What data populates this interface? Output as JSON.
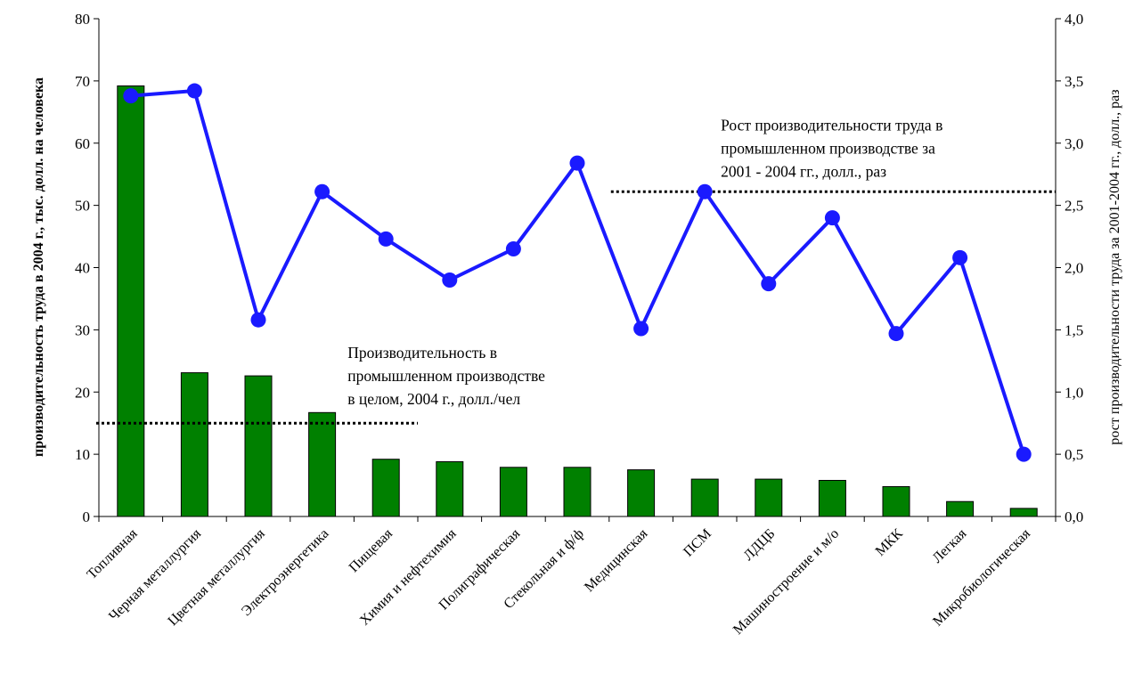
{
  "chart_data": {
    "type": "bar+line",
    "categories": [
      "Топливная",
      "Черная металлургия",
      "Цветная металлургия",
      "Электроэнергетика",
      "Пищевая",
      "Химия и нефтехимия",
      "Полиграфическая",
      "Стекольная и ф/ф",
      "Медицинская",
      "ПСМ",
      "ЛДЦБ",
      "Машиностроение и м/о",
      "МКК",
      "Легкая",
      "Микробиологическая"
    ],
    "series": [
      {
        "kind": "bar",
        "axis": "left",
        "color": "#008000",
        "values": [
          69.2,
          23.1,
          22.6,
          16.7,
          9.2,
          8.8,
          7.9,
          7.9,
          7.5,
          6.0,
          6.0,
          5.8,
          4.8,
          2.4,
          1.3
        ]
      },
      {
        "kind": "line",
        "axis": "right",
        "color": "#1a1aff",
        "values": [
          3.38,
          3.42,
          1.58,
          2.61,
          2.23,
          1.9,
          2.15,
          2.84,
          1.51,
          2.61,
          1.87,
          2.4,
          1.47,
          2.08,
          0.5
        ]
      }
    ],
    "reference_lines": [
      {
        "axis": "left",
        "value": 15,
        "from_index": 0,
        "to_index": 5,
        "label": [
          "Производительность в",
          "промышленном производстве",
          "в целом, 2004 г., долл./чел"
        ]
      },
      {
        "axis": "right",
        "value": 2.61,
        "from_index": 8,
        "to_index": 15,
        "label": [
          "Рост производительности труда в",
          "промышленном производстве за",
          "2001 - 2004 гг., долл., раз"
        ]
      }
    ],
    "ylabel": "производительность труда в 2004 г., тыс. долл. на человека",
    "y2label": "рост производительности труда за 2001-2004 гг., долл., раз",
    "ylim": [
      0,
      80
    ],
    "y2lim": [
      0,
      4
    ],
    "yticks": [
      "0",
      "10",
      "20",
      "30",
      "40",
      "50",
      "60",
      "70",
      "80"
    ],
    "y2ticks": [
      "0,0",
      "0,5",
      "1,0",
      "1,5",
      "2,0",
      "2,5",
      "3,0",
      "3,5",
      "4,0"
    ],
    "grid": false,
    "legend": "none"
  }
}
